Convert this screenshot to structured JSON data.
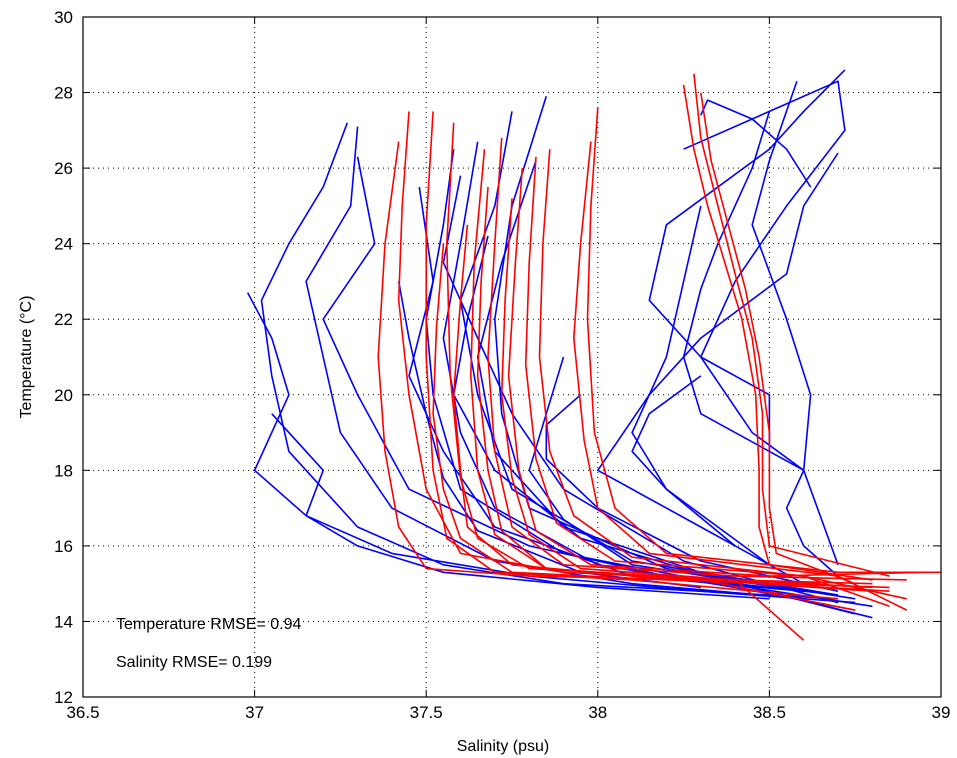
{
  "chart_data": {
    "type": "line",
    "title": "",
    "xlabel": "Salinity (psu)",
    "ylabel": "Temperature (°C)",
    "xlim": [
      36.5,
      39
    ],
    "ylim": [
      12,
      30
    ],
    "xticks": [
      36.5,
      37,
      37.5,
      38,
      38.5,
      39
    ],
    "xtick_labels": [
      "36.5",
      "37",
      "37.5",
      "38",
      "38.5",
      "39"
    ],
    "yticks": [
      12,
      14,
      16,
      18,
      20,
      22,
      24,
      26,
      28,
      30
    ],
    "ytick_labels": [
      "12",
      "14",
      "16",
      "18",
      "20",
      "22",
      "24",
      "26",
      "28",
      "30"
    ],
    "grid": true,
    "grid_style": "dotted",
    "colors": {
      "observed": "#0000ff",
      "model": "#ff0000"
    },
    "annotations": [
      "Temperature RMSE= 0.94",
      "Salinity RMSE= 0.199"
    ],
    "series": [
      {
        "color": "#0000ff",
        "x": [
          37.27,
          37.2,
          37.1,
          37.02,
          37.05,
          37.1,
          37.3,
          37.55,
          37.9,
          38.3,
          38.7
        ],
        "y": [
          27.2,
          25.5,
          24,
          22.5,
          20.5,
          18.5,
          16.5,
          15.5,
          15,
          14.8,
          14.6
        ]
      },
      {
        "color": "#0000ff",
        "x": [
          37.3,
          37.28,
          37.15,
          37.2,
          37.25,
          37.4,
          37.7,
          38.1,
          38.6
        ],
        "y": [
          27.1,
          25,
          23,
          21,
          19,
          17,
          15.6,
          15,
          14.6
        ]
      },
      {
        "color": "#0000ff",
        "x": [
          36.98,
          37.05,
          37.1,
          37.0,
          37.15,
          37.4,
          37.8,
          38.3,
          38.75
        ],
        "y": [
          22.7,
          21.5,
          20,
          18,
          16.8,
          15.8,
          15.2,
          14.8,
          14.5
        ]
      },
      {
        "color": "#0000ff",
        "x": [
          37.3,
          37.35,
          37.2,
          37.3,
          37.45,
          37.8,
          38.2,
          38.7
        ],
        "y": [
          26.3,
          24,
          22,
          20,
          17.5,
          16,
          15.2,
          14.7
        ]
      },
      {
        "color": "#0000ff",
        "x": [
          37.05,
          37.2,
          37.15,
          37.3,
          37.55,
          38,
          38.5
        ],
        "y": [
          19.5,
          18,
          16.8,
          16,
          15.3,
          14.9,
          14.6
        ]
      },
      {
        "color": "#0000ff",
        "x": [
          37.58,
          37.55,
          37.5,
          37.52,
          37.6,
          37.9,
          38.3,
          38.8
        ],
        "y": [
          26.5,
          24.5,
          22,
          20,
          17.5,
          15.8,
          15.1,
          14.4
        ]
      },
      {
        "color": "#0000ff",
        "x": [
          37.65,
          37.6,
          37.55,
          37.6,
          37.7,
          38,
          38.4,
          38.75
        ],
        "y": [
          26.7,
          24,
          21.5,
          19,
          17,
          15.5,
          14.9,
          14.3
        ]
      },
      {
        "color": "#0000ff",
        "x": [
          37.75,
          37.7,
          37.6,
          37.65,
          37.75,
          38.1,
          38.7
        ],
        "y": [
          27.5,
          25,
          22.5,
          20,
          17.5,
          15.6,
          14.7
        ]
      },
      {
        "color": "#0000ff",
        "x": [
          37.85,
          37.75,
          37.7,
          37.72,
          37.8,
          38.2,
          38.75
        ],
        "y": [
          27.9,
          25,
          22,
          19.5,
          17,
          15.4,
          14.6
        ]
      },
      {
        "color": "#0000ff",
        "x": [
          37.82,
          37.72,
          37.65,
          37.7,
          37.9,
          38.4,
          38.8
        ],
        "y": [
          26.2,
          23.5,
          21,
          18.5,
          16.5,
          15,
          14.1
        ]
      },
      {
        "color": "#0000ff",
        "x": [
          37.9,
          37.85,
          37.8,
          37.9,
          38.1,
          38.6
        ],
        "y": [
          21,
          19.5,
          18,
          16.7,
          15.5,
          14.8
        ]
      },
      {
        "color": "#0000ff",
        "x": [
          37.95,
          37.85,
          37.85,
          38.0,
          38.3,
          38.7
        ],
        "y": [
          20,
          19.2,
          18.3,
          17,
          15.6,
          14.8
        ]
      },
      {
        "color": "#0000ff",
        "x": [
          38.3,
          38.25,
          38.2,
          38.1,
          38.2,
          38.4
        ],
        "y": [
          25,
          23,
          21,
          19,
          17.5,
          16
        ]
      },
      {
        "color": "#0000ff",
        "x": [
          38.3,
          38.15,
          38.1,
          38.2,
          38.35,
          38.5
        ],
        "y": [
          20.5,
          19.5,
          18.5,
          17.5,
          16.5,
          15.5
        ]
      },
      {
        "color": "#0000ff",
        "x": [
          38.5,
          38.45,
          38.35,
          38.3,
          38.25,
          38.3,
          38.5,
          38.6,
          38.55,
          38.6,
          38.7
        ],
        "y": [
          27.5,
          26,
          24,
          22.8,
          21,
          19.5,
          18.5,
          18,
          17,
          16,
          15.2
        ]
      },
      {
        "color": "#0000ff",
        "x": [
          38.58,
          38.5,
          38.45,
          38.55,
          38.62,
          38.6,
          38.7
        ],
        "y": [
          28.3,
          26.2,
          24.5,
          22,
          20,
          18,
          15.5
        ]
      },
      {
        "color": "#0000ff",
        "x": [
          38.72,
          38.6,
          38.5,
          38.2,
          38.15,
          38.3,
          38.5,
          38.5
        ],
        "y": [
          28.6,
          27.5,
          26.5,
          24.5,
          22.5,
          21,
          20,
          18.5
        ]
      },
      {
        "color": "#0000ff",
        "x": [
          38.7,
          38.6,
          38.55,
          38.3,
          38.15,
          38.0,
          38.3,
          38.6
        ],
        "y": [
          26.4,
          25,
          23.2,
          21.5,
          20,
          18,
          16.5,
          15
        ]
      },
      {
        "color": "#0000ff",
        "x": [
          38.25,
          38.5,
          38.7,
          38.72,
          38.55,
          38.4,
          38.3,
          38.45,
          38.6
        ],
        "y": [
          26.5,
          27.5,
          28.3,
          27,
          25,
          23,
          21,
          19,
          18
        ]
      },
      {
        "color": "#0000ff",
        "x": [
          38.3,
          38.32,
          38.45,
          38.55,
          38.62
        ],
        "y": [
          27.4,
          27.8,
          27.3,
          26.5,
          25.5
        ]
      },
      {
        "color": "#0000ff",
        "x": [
          37.48,
          37.52,
          37.45,
          37.55,
          37.7,
          38.1,
          38.6
        ],
        "y": [
          25.5,
          23,
          20.5,
          18.5,
          16.5,
          15.2,
          14.8
        ]
      },
      {
        "color": "#0000ff",
        "x": [
          37.6,
          37.55,
          37.65,
          37.75,
          37.9,
          38.25,
          38.7
        ],
        "y": [
          25.8,
          23.5,
          21.5,
          19.5,
          17.5,
          15.6,
          14.5
        ]
      },
      {
        "color": "#0000ff",
        "x": [
          37.68,
          37.62,
          37.58,
          37.7,
          37.95,
          38.4,
          38.75
        ],
        "y": [
          24.2,
          22,
          20,
          18,
          16.2,
          15,
          14.2
        ]
      },
      {
        "color": "#0000ff",
        "x": [
          37.42,
          37.45,
          37.5,
          37.55,
          37.65,
          37.95,
          38.3
        ],
        "y": [
          23,
          21.5,
          19.5,
          17.8,
          16.4,
          15.3,
          14.9
        ]
      },
      {
        "color": "#ff0000",
        "x": [
          37.45,
          37.43,
          37.42,
          37.45,
          37.5,
          37.6,
          37.9,
          38.4,
          38.8
        ],
        "y": [
          27.5,
          25,
          22.5,
          20,
          17.5,
          15.8,
          15.3,
          15.1,
          15
        ]
      },
      {
        "color": "#ff0000",
        "x": [
          37.42,
          37.38,
          37.36,
          37.38,
          37.42,
          37.5,
          37.8,
          38.3,
          38.8
        ],
        "y": [
          26.7,
          24,
          21,
          18.5,
          16.5,
          15.4,
          15.2,
          15.1,
          14.8
        ]
      },
      {
        "color": "#ff0000",
        "x": [
          37.52,
          37.5,
          37.5,
          37.52,
          37.56,
          37.7,
          38.1,
          38.7
        ],
        "y": [
          27.5,
          24.5,
          21,
          18,
          16.2,
          15.3,
          15.1,
          14.6
        ]
      },
      {
        "color": "#ff0000",
        "x": [
          37.58,
          37.56,
          37.57,
          37.6,
          37.65,
          37.8,
          38.2,
          38.8
        ],
        "y": [
          27.2,
          24,
          20.5,
          17.8,
          16.2,
          15.4,
          15.2,
          14.9
        ]
      },
      {
        "color": "#ff0000",
        "x": [
          37.67,
          37.64,
          37.63,
          37.65,
          37.7,
          37.85,
          38.3,
          38.85
        ],
        "y": [
          26.5,
          23.5,
          20.5,
          18,
          16.3,
          15.4,
          15.1,
          14.8
        ]
      },
      {
        "color": "#ff0000",
        "x": [
          37.72,
          37.7,
          37.68,
          37.7,
          37.75,
          37.9,
          38.4,
          38.9
        ],
        "y": [
          26.8,
          24,
          21,
          18.5,
          16.5,
          15.5,
          15.2,
          15.1
        ]
      },
      {
        "color": "#ff0000",
        "x": [
          37.78,
          37.76,
          37.74,
          37.77,
          37.82,
          37.98,
          38.5,
          38.95
        ],
        "y": [
          26,
          23.5,
          20.5,
          18,
          16.4,
          15.5,
          15.2,
          15.3
        ]
      },
      {
        "color": "#ff0000",
        "x": [
          37.82,
          37.8,
          37.79,
          37.82,
          37.88,
          38.05,
          38.6,
          38.9
        ],
        "y": [
          26.3,
          23.5,
          20.8,
          18.3,
          16.6,
          15.6,
          15.2,
          14.6
        ]
      },
      {
        "color": "#ff0000",
        "x": [
          37.86,
          37.84,
          37.83,
          37.86,
          37.93,
          38.1,
          38.6,
          38.85
        ],
        "y": [
          26.5,
          24,
          21,
          18.5,
          16.8,
          15.7,
          15.2,
          14.4
        ]
      },
      {
        "color": "#ff0000",
        "x": [
          38,
          37.98,
          37.97,
          37.99,
          38.05,
          38.2,
          38.7,
          39.0
        ],
        "y": [
          27.6,
          25,
          22,
          19,
          17,
          15.8,
          15.3,
          15.3
        ]
      },
      {
        "color": "#ff0000",
        "x": [
          37.98,
          37.95,
          37.93,
          37.96,
          38.0,
          38.15,
          38.7,
          38.9
        ],
        "y": [
          26.7,
          24,
          21.5,
          18.8,
          17,
          15.8,
          15.2,
          14.3
        ]
      },
      {
        "color": "#ff0000",
        "x": [
          38.25,
          38.28,
          38.32,
          38.37,
          38.42,
          38.46,
          38.47,
          38.47,
          38.5,
          38.8
        ],
        "y": [
          28.2,
          26.5,
          25,
          23.5,
          22,
          20,
          18,
          16.5,
          15.5,
          15.1
        ]
      },
      {
        "color": "#ff0000",
        "x": [
          38.28,
          38.3,
          38.35,
          38.4,
          38.45,
          38.48,
          38.48,
          38.5,
          38.85
        ],
        "y": [
          28.5,
          26.8,
          25,
          23.2,
          21.5,
          19.5,
          17.5,
          16,
          15.2
        ]
      },
      {
        "color": "#ff0000",
        "x": [
          38.3,
          38.33,
          38.38,
          38.43,
          38.47,
          38.5,
          38.5,
          38.52,
          38.75
        ],
        "y": [
          28,
          26.2,
          24.5,
          22.8,
          21,
          19,
          17,
          15.8,
          15
        ]
      },
      {
        "color": "#ff0000",
        "x": [
          37.62,
          37.6,
          37.58,
          37.6,
          37.62,
          37.75,
          38.1,
          38.65
        ],
        "y": [
          24.5,
          22.5,
          20,
          18,
          16.5,
          15.5,
          15.2,
          15
        ]
      },
      {
        "color": "#ff0000",
        "x": [
          37.68,
          37.66,
          37.65,
          37.68,
          37.72,
          37.85,
          38.3,
          38.75
        ],
        "y": [
          25.5,
          23,
          20.5,
          18,
          16.4,
          15.4,
          15.1,
          14.3
        ]
      },
      {
        "color": "#ff0000",
        "x": [
          37.75,
          37.73,
          37.72,
          37.75,
          37.8,
          37.95,
          38.4,
          38.6
        ],
        "y": [
          25.2,
          22.5,
          20,
          17.8,
          16.3,
          15.4,
          15.1,
          13.5
        ]
      },
      {
        "color": "#ff0000",
        "x": [
          37.55,
          37.53,
          37.52,
          37.55,
          37.6,
          37.75,
          38.2,
          38.85
        ],
        "y": [
          24,
          21.8,
          19.5,
          17.5,
          16.2,
          15.3,
          15.1,
          14.9
        ]
      }
    ]
  }
}
